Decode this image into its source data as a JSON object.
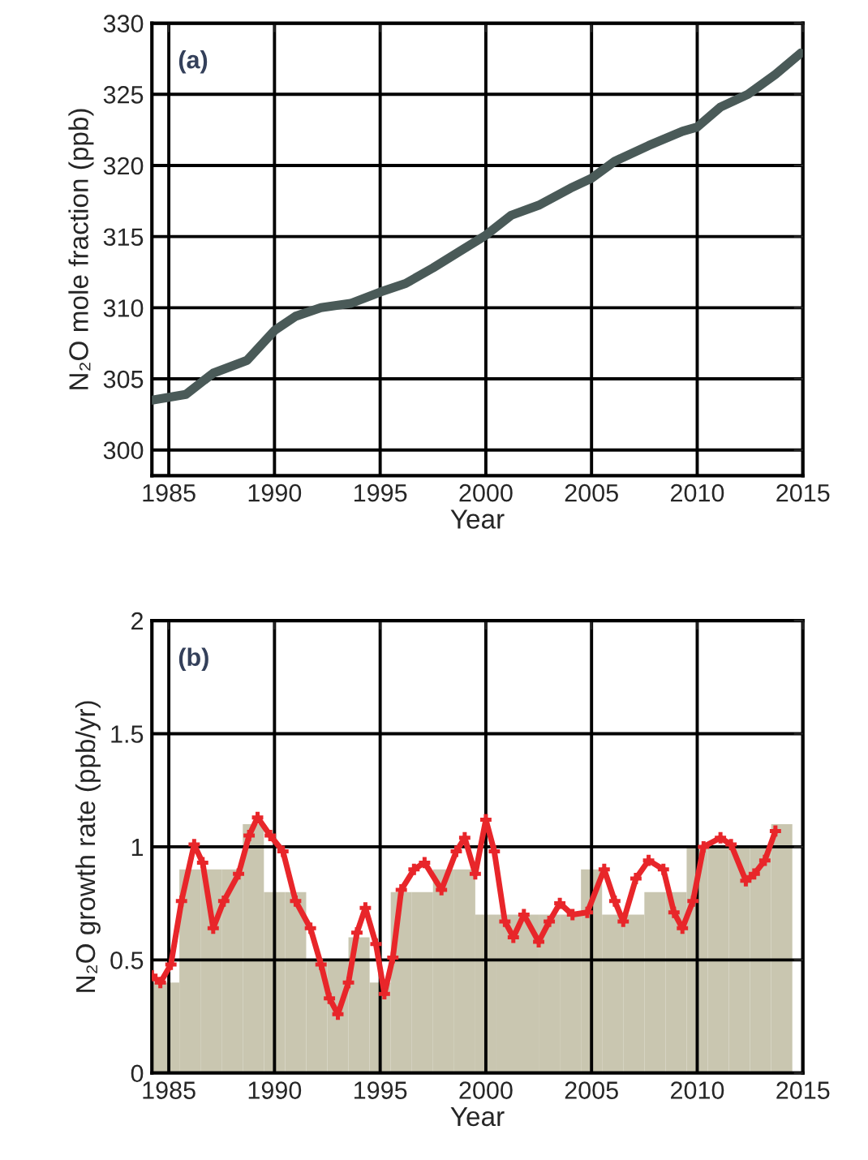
{
  "chart_data": [
    {
      "type": "line",
      "xlabel": "Year",
      "ylabel": "N₂O mole fraction (ppb)",
      "annotations": [
        "(a)"
      ],
      "xlim": [
        1984.2,
        2015
      ],
      "xticks": [
        1985,
        1990,
        1995,
        2000,
        2005,
        2010,
        2015
      ],
      "ylim": [
        298.2,
        330
      ],
      "yticks": [
        300,
        305,
        310,
        315,
        320,
        325,
        330
      ],
      "grid": true,
      "legend": false,
      "series": [
        {
          "color": "#4a5a58",
          "x": [
            1984.2,
            1985.8,
            1987.1,
            1988.7,
            1990,
            1991,
            1992.2,
            1993.6,
            1995,
            1996.2,
            1997.5,
            1998.8,
            2000,
            2001.2,
            2002.5,
            2004,
            2005,
            2006.1,
            2007.7,
            2009.3,
            2010,
            2011.1,
            2012.4,
            2013.7,
            2014.9
          ],
          "values": [
            303.5,
            303.9,
            305.4,
            306.3,
            308.4,
            309.4,
            310.0,
            310.3,
            311.1,
            311.7,
            312.8,
            314.0,
            315.1,
            316.5,
            317.2,
            318.4,
            319.1,
            320.3,
            321.4,
            322.4,
            322.7,
            324.1,
            325.0,
            326.4,
            327.9
          ]
        }
      ]
    },
    {
      "type": "bar",
      "xlabel": "Year",
      "ylabel": "N₂O growth rate (ppb/yr)",
      "annotations": [
        "(b)"
      ],
      "xlim": [
        1984.2,
        2015
      ],
      "xticks": [
        1985,
        1990,
        1995,
        2000,
        2005,
        2010,
        2015
      ],
      "ylim": [
        0,
        2
      ],
      "yticks": [
        0,
        0.5,
        1,
        1.5,
        2
      ],
      "grid": true,
      "legend": false,
      "marker": "cross",
      "series": [
        {
          "type": "bar",
          "color": "#c9c6b0",
          "x": [
            1984.85,
            1986,
            1987,
            1988,
            1989,
            1990,
            1991,
            1992,
            1993,
            1994,
            1995,
            1996,
            1997,
            1998,
            1999,
            2000,
            2001,
            2002,
            2003,
            2004,
            2005,
            2006,
            2007,
            2008,
            2009,
            2010,
            2011,
            2012,
            2013,
            2014
          ],
          "values": [
            0.4,
            0.9,
            0.9,
            0.9,
            1.1,
            0.8,
            0.8,
            0.5,
            0.5,
            0.6,
            0.4,
            0.8,
            0.8,
            0.9,
            0.9,
            0.7,
            0.7,
            0.7,
            0.7,
            0.7,
            0.9,
            0.7,
            0.7,
            0.8,
            0.8,
            1.0,
            1.0,
            1.0,
            1.0,
            1.1
          ]
        },
        {
          "type": "line",
          "color": "#e8262a",
          "x": [
            1984.2,
            1984.6,
            1985.1,
            1985.6,
            1986.2,
            1986.6,
            1987.1,
            1987.6,
            1988.3,
            1988.8,
            1989.2,
            1989.8,
            1990.4,
            1991.0,
            1991.7,
            1992.2,
            1992.6,
            1993.0,
            1993.5,
            1993.9,
            1994.3,
            1994.8,
            1995.2,
            1995.6,
            1996.0,
            1996.6,
            1997.1,
            1997.9,
            1998.6,
            1999.0,
            1999.5,
            2000.0,
            2000.4,
            2000.9,
            2001.3,
            2001.8,
            2002.5,
            2003.0,
            2003.5,
            2004.1,
            2004.8,
            2005.6,
            2006.1,
            2006.5,
            2007.1,
            2007.7,
            2008.4,
            2008.9,
            2009.3,
            2009.8,
            2010.3,
            2011.1,
            2011.6,
            2012.3,
            2012.7,
            2013.2,
            2013.7
          ],
          "values": [
            0.43,
            0.4,
            0.48,
            0.76,
            1.01,
            0.93,
            0.64,
            0.76,
            0.88,
            1.05,
            1.13,
            1.05,
            0.98,
            0.76,
            0.64,
            0.48,
            0.33,
            0.26,
            0.4,
            0.62,
            0.73,
            0.57,
            0.35,
            0.51,
            0.81,
            0.9,
            0.93,
            0.81,
            0.98,
            1.04,
            0.88,
            1.12,
            0.98,
            0.67,
            0.6,
            0.7,
            0.58,
            0.67,
            0.75,
            0.7,
            0.71,
            0.9,
            0.76,
            0.67,
            0.86,
            0.94,
            0.9,
            0.71,
            0.64,
            0.76,
            1.0,
            1.04,
            1.01,
            0.85,
            0.88,
            0.94,
            1.07
          ]
        }
      ]
    }
  ]
}
